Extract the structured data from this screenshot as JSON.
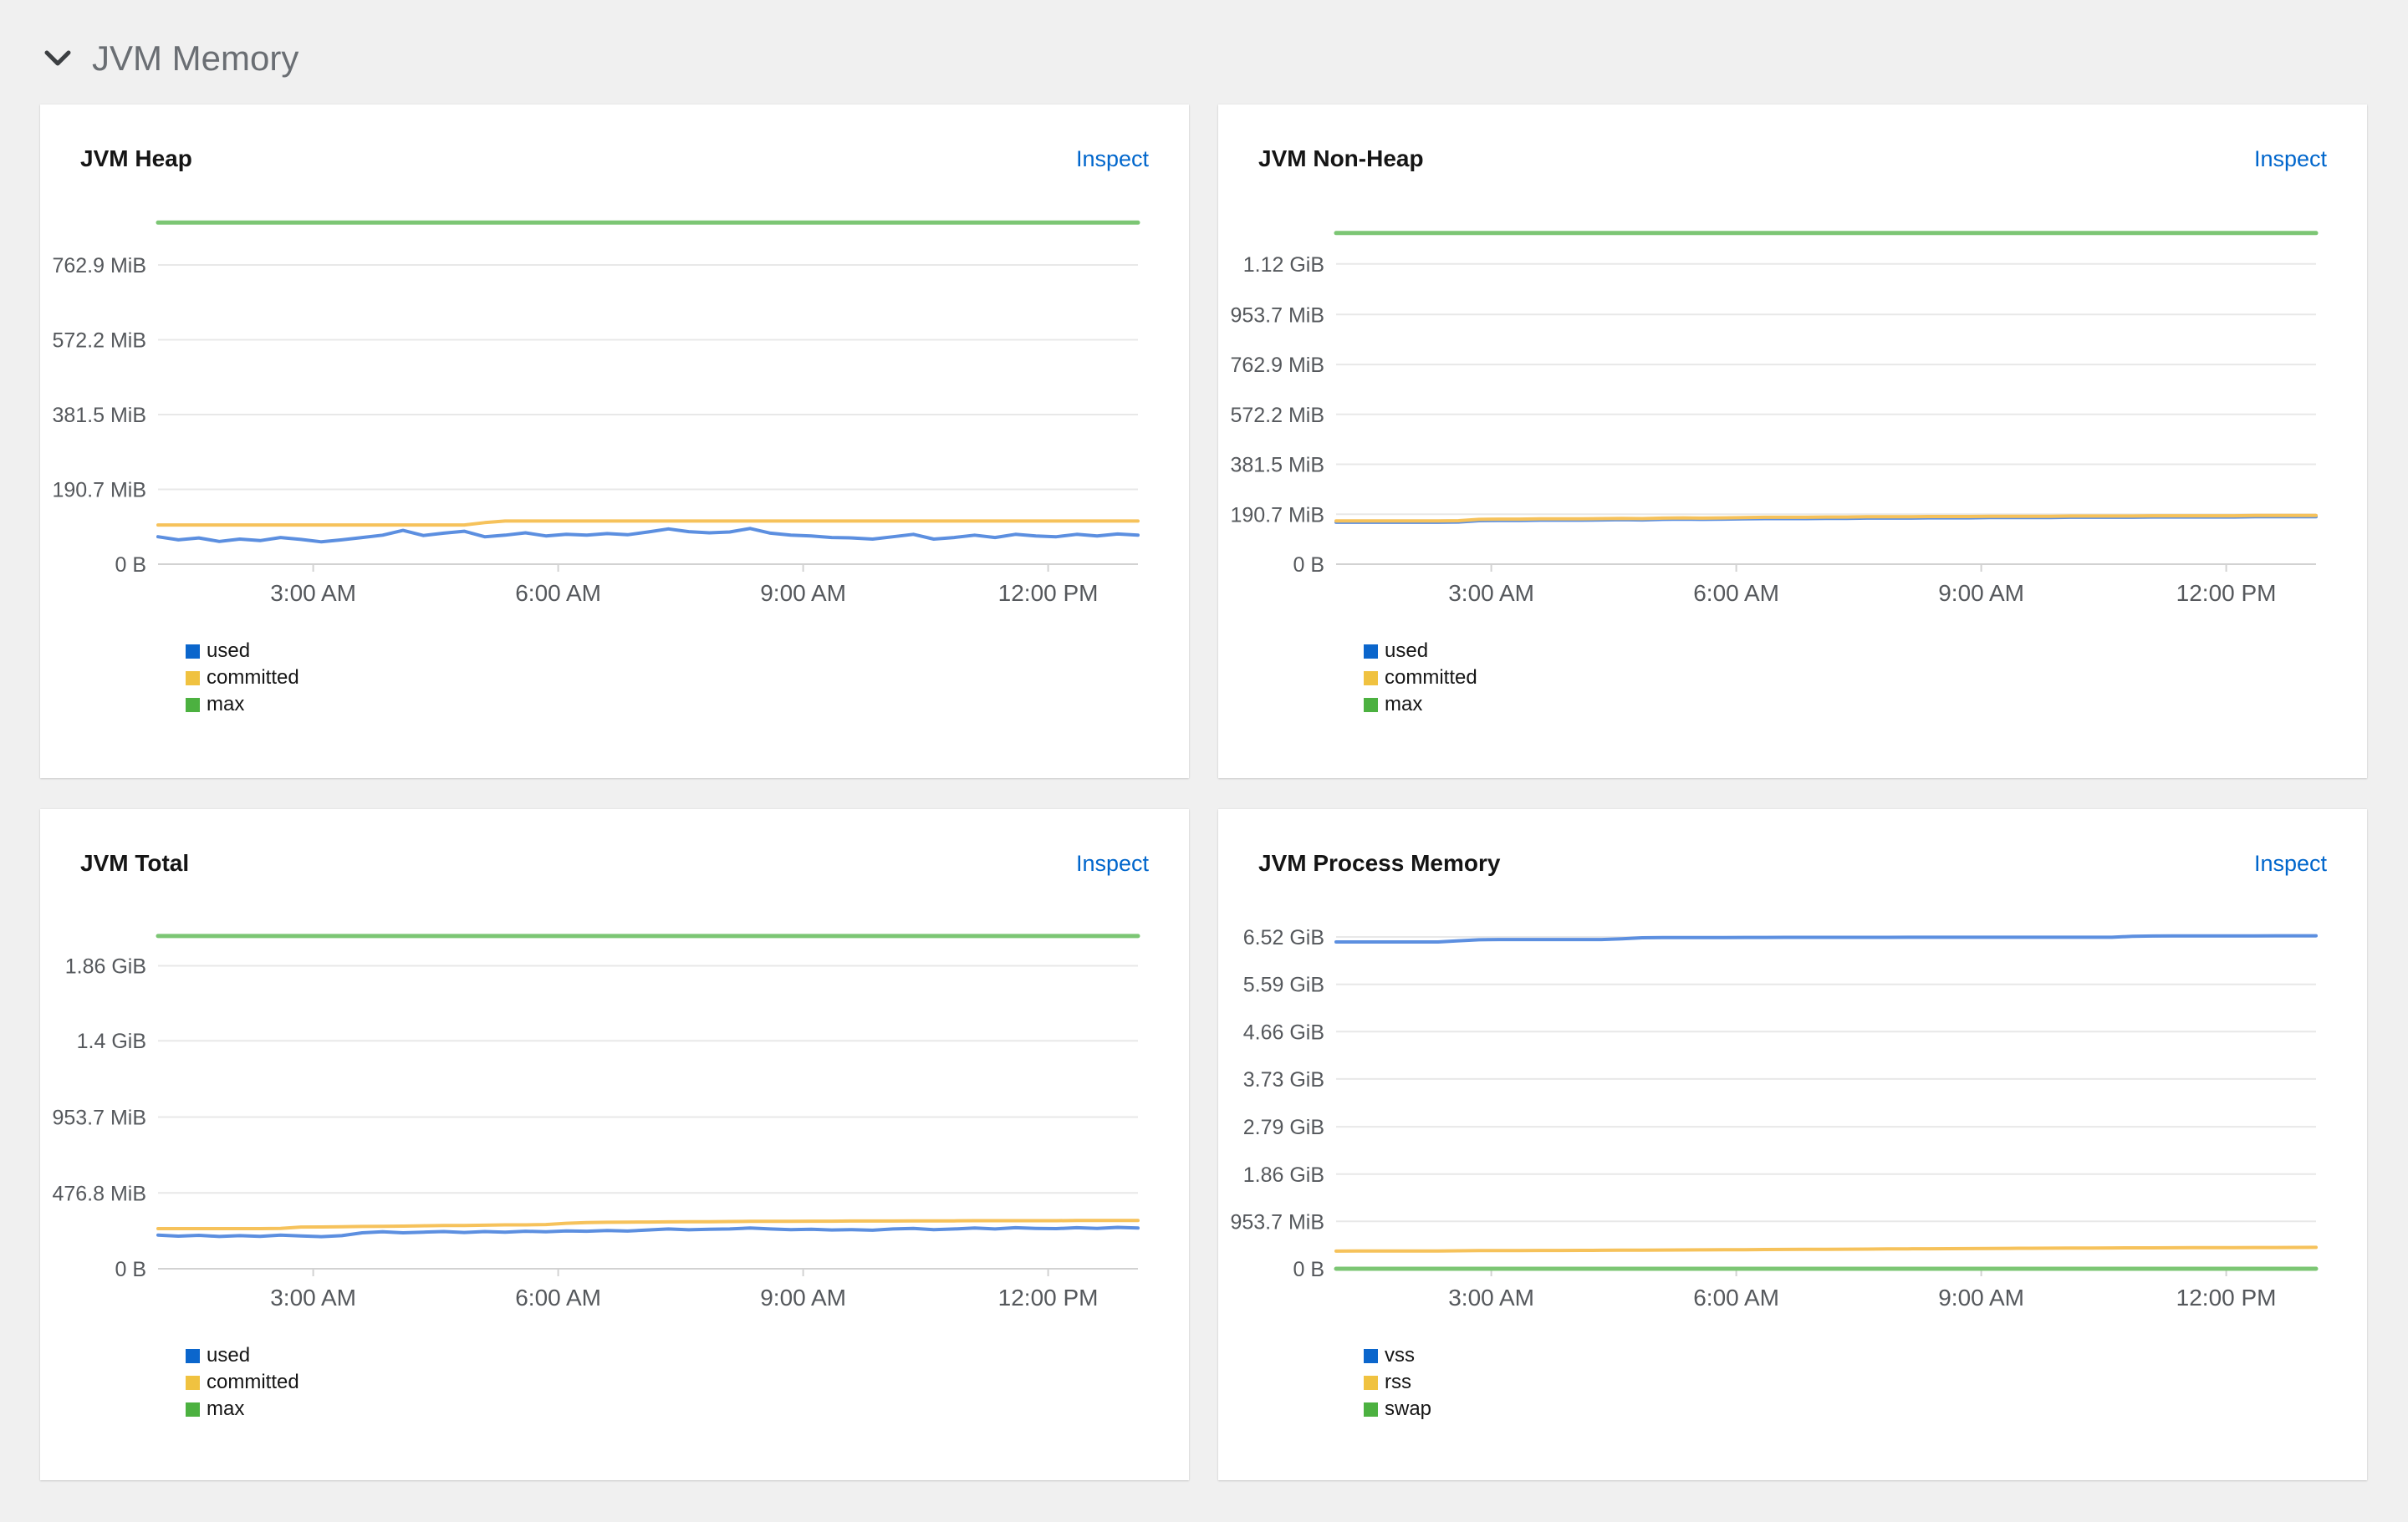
{
  "section": {
    "title": "JVM Memory"
  },
  "panels": [
    {
      "title": "JVM Heap",
      "inspect_label": "Inspect"
    },
    {
      "title": "JVM Non-Heap",
      "inspect_label": "Inspect"
    },
    {
      "title": "JVM Total",
      "inspect_label": "Inspect"
    },
    {
      "title": "JVM Process Memory",
      "inspect_label": "Inspect"
    }
  ],
  "colors": {
    "page_bg": "#f0f0f0",
    "panel_bg": "#ffffff",
    "section_title": "#6a6e73",
    "chevron": "#3c3f42",
    "panel_title": "#151515",
    "link": "#0066cc",
    "axis_text": "#55585c",
    "gridline": "#e8e8e8",
    "axis_line": "#d2d2d2",
    "series": {
      "blue": "#5c8fe0",
      "gold": "#f6c25b",
      "green": "#7cc674"
    },
    "legend": {
      "blue": "#0b66cc",
      "gold": "#f0c240",
      "green": "#4cb140"
    }
  },
  "chart_data": [
    {
      "type": "line",
      "title": "JVM Heap",
      "x_domain": [
        1.1,
        13.1
      ],
      "y_domain_mib": [
        0,
        895
      ],
      "grid": true,
      "legend_position": "bottom-left",
      "x_ticks": [
        {
          "value_hours": 3,
          "label": "3:00 AM"
        },
        {
          "value_hours": 6,
          "label": "6:00 AM"
        },
        {
          "value_hours": 9,
          "label": "9:00 AM"
        },
        {
          "value_hours": 12,
          "label": "12:00 PM"
        }
      ],
      "y_ticks": [
        {
          "value_mib": 0,
          "label": "0 B"
        },
        {
          "value_mib": 190.7,
          "label": "190.7 MiB"
        },
        {
          "value_mib": 381.5,
          "label": "381.5 MiB"
        },
        {
          "value_mib": 572.2,
          "label": "572.2 MiB"
        },
        {
          "value_mib": 762.9,
          "label": "762.9 MiB"
        }
      ],
      "x_hours": [
        1.1,
        1.35,
        1.6,
        1.85,
        2.1,
        2.35,
        2.6,
        2.85,
        3.1,
        3.35,
        3.6,
        3.85,
        4.1,
        4.35,
        4.6,
        4.85,
        5.1,
        5.35,
        5.6,
        5.85,
        6.1,
        6.35,
        6.6,
        6.85,
        7.1,
        7.35,
        7.6,
        7.85,
        8.1,
        8.35,
        8.6,
        8.85,
        9.1,
        9.35,
        9.6,
        9.85,
        10.1,
        10.35,
        10.6,
        10.85,
        11.1,
        11.35,
        11.6,
        11.85,
        12.1,
        12.35,
        12.6,
        12.85,
        13.1
      ],
      "series": [
        {
          "name": "used",
          "color": "blue",
          "values_mib": [
            70,
            62,
            67,
            58,
            64,
            60,
            68,
            63,
            57,
            62,
            68,
            74,
            86,
            73,
            79,
            84,
            70,
            74,
            80,
            72,
            76,
            74,
            78,
            75,
            82,
            90,
            83,
            80,
            82,
            91,
            79,
            74,
            72,
            68,
            67,
            64,
            70,
            76,
            64,
            68,
            74,
            68,
            76,
            72,
            70,
            76,
            72,
            77,
            74
          ]
        },
        {
          "name": "committed",
          "color": "gold",
          "values_mib": [
            100,
            100,
            100,
            100,
            100,
            100,
            100,
            100,
            100,
            100,
            100,
            100,
            100,
            100,
            100,
            100,
            106,
            110,
            110,
            110,
            110,
            110,
            110,
            110,
            110,
            110,
            110,
            110,
            110,
            110,
            110,
            110,
            110,
            110,
            110,
            110,
            110,
            110,
            110,
            110,
            110,
            110,
            110,
            110,
            110,
            110,
            110,
            110,
            110
          ]
        },
        {
          "name": "max",
          "color": "green",
          "x_hours": [
            1.1,
            13.1
          ],
          "values_mib": [
            871,
            871
          ]
        }
      ]
    },
    {
      "type": "line",
      "title": "JVM Non-Heap",
      "x_domain": [
        1.1,
        13.1
      ],
      "y_domain_mib": [
        0,
        1341
      ],
      "grid": true,
      "legend_position": "bottom-left",
      "x_ticks": [
        {
          "value_hours": 3,
          "label": "3:00 AM"
        },
        {
          "value_hours": 6,
          "label": "6:00 AM"
        },
        {
          "value_hours": 9,
          "label": "9:00 AM"
        },
        {
          "value_hours": 12,
          "label": "12:00 PM"
        }
      ],
      "y_ticks": [
        {
          "value_mib": 0,
          "label": "0 B"
        },
        {
          "value_mib": 190.7,
          "label": "190.7 MiB"
        },
        {
          "value_mib": 381.5,
          "label": "381.5 MiB"
        },
        {
          "value_mib": 572.2,
          "label": "572.2 MiB"
        },
        {
          "value_mib": 762.9,
          "label": "762.9 MiB"
        },
        {
          "value_mib": 953.7,
          "label": "953.7 MiB"
        },
        {
          "value_mib": 1146.9,
          "label": "1.12 GiB"
        }
      ],
      "x_hours": [
        1.1,
        1.35,
        1.6,
        1.85,
        2.1,
        2.35,
        2.6,
        2.85,
        3.1,
        3.35,
        3.6,
        3.85,
        4.1,
        4.35,
        4.6,
        4.85,
        5.1,
        5.35,
        5.6,
        5.85,
        6.1,
        6.35,
        6.6,
        6.85,
        7.1,
        7.35,
        7.6,
        7.85,
        8.1,
        8.35,
        8.6,
        8.85,
        9.1,
        9.35,
        9.6,
        9.85,
        10.1,
        10.35,
        10.6,
        10.85,
        11.1,
        11.35,
        11.6,
        11.85,
        12.1,
        12.35,
        12.6,
        12.85,
        13.1
      ],
      "series": [
        {
          "name": "used",
          "color": "blue",
          "values_mib": [
            160,
            160,
            160,
            160,
            160,
            160,
            161,
            166,
            167,
            167,
            168,
            168,
            168,
            169,
            170,
            169,
            171,
            172,
            171,
            172,
            173,
            174,
            174,
            174,
            175,
            175,
            176,
            176,
            176,
            177,
            177,
            177,
            178,
            178,
            178,
            178,
            179,
            179,
            179,
            179,
            180,
            180,
            180,
            180,
            180,
            181,
            181,
            181,
            181
          ]
        },
        {
          "name": "committed",
          "color": "gold",
          "values_mib": [
            165,
            165,
            165,
            165,
            165,
            165,
            166,
            171,
            172,
            172,
            173,
            173,
            173,
            174,
            175,
            174,
            176,
            177,
            176,
            177,
            178,
            179,
            179,
            179,
            180,
            180,
            181,
            181,
            181,
            182,
            182,
            182,
            183,
            183,
            183,
            183,
            184,
            184,
            184,
            184,
            185,
            185,
            185,
            185,
            185,
            186,
            186,
            186,
            186
          ]
        },
        {
          "name": "max",
          "color": "green",
          "x_hours": [
            1.1,
            13.1
          ],
          "values_mib": [
            1265,
            1265
          ]
        }
      ]
    },
    {
      "type": "line",
      "title": "JVM Total",
      "x_domain": [
        1.1,
        13.1
      ],
      "y_domain_mib": [
        0,
        2207
      ],
      "grid": true,
      "legend_position": "bottom-left",
      "x_ticks": [
        {
          "value_hours": 3,
          "label": "3:00 AM"
        },
        {
          "value_hours": 6,
          "label": "6:00 AM"
        },
        {
          "value_hours": 9,
          "label": "9:00 AM"
        },
        {
          "value_hours": 12,
          "label": "12:00 PM"
        }
      ],
      "y_ticks": [
        {
          "value_mib": 0,
          "label": "0 B"
        },
        {
          "value_mib": 476.8,
          "label": "476.8 MiB"
        },
        {
          "value_mib": 953.7,
          "label": "953.7 MiB"
        },
        {
          "value_mib": 1433.6,
          "label": "1.4 GiB"
        },
        {
          "value_mib": 1904.6,
          "label": "1.86 GiB"
        }
      ],
      "x_hours": [
        1.1,
        1.35,
        1.6,
        1.85,
        2.1,
        2.35,
        2.6,
        2.85,
        3.1,
        3.35,
        3.6,
        3.85,
        4.1,
        4.35,
        4.6,
        4.85,
        5.1,
        5.35,
        5.6,
        5.85,
        6.1,
        6.35,
        6.6,
        6.85,
        7.1,
        7.35,
        7.6,
        7.85,
        8.1,
        8.35,
        8.6,
        8.85,
        9.1,
        9.35,
        9.6,
        9.85,
        10.1,
        10.35,
        10.6,
        10.85,
        11.1,
        11.35,
        11.6,
        11.85,
        12.1,
        12.35,
        12.6,
        12.85,
        13.1
      ],
      "series": [
        {
          "name": "used",
          "color": "blue",
          "values_mib": [
            212,
            205,
            210,
            203,
            208,
            204,
            212,
            206,
            202,
            208,
            226,
            232,
            226,
            230,
            234,
            228,
            234,
            230,
            236,
            232,
            238,
            236,
            240,
            237,
            244,
            250,
            245,
            248,
            250,
            256,
            250,
            246,
            248,
            244,
            246,
            242,
            250,
            254,
            246,
            250,
            256,
            250,
            258,
            254,
            252,
            258,
            254,
            260,
            256
          ]
        },
        {
          "name": "committed",
          "color": "gold",
          "values_mib": [
            252,
            252,
            252,
            252,
            252,
            252,
            254,
            262,
            263,
            264,
            266,
            267,
            268,
            270,
            272,
            272,
            274,
            276,
            276,
            278,
            286,
            290,
            292,
            293,
            294,
            295,
            296,
            296,
            297,
            298,
            298,
            298,
            299,
            299,
            300,
            300,
            300,
            301,
            301,
            301,
            302,
            302,
            302,
            302,
            302,
            303,
            303,
            303,
            303
          ]
        },
        {
          "name": "max",
          "color": "green",
          "x_hours": [
            1.1,
            13.1
          ],
          "values_mib": [
            2092,
            2092
          ]
        }
      ]
    },
    {
      "type": "line",
      "title": "JVM Process Memory",
      "x_domain": [
        1.1,
        13.1
      ],
      "y_domain_mib": [
        0,
        7064
      ],
      "grid": true,
      "legend_position": "bottom-left",
      "x_ticks": [
        {
          "value_hours": 3,
          "label": "3:00 AM"
        },
        {
          "value_hours": 6,
          "label": "6:00 AM"
        },
        {
          "value_hours": 9,
          "label": "9:00 AM"
        },
        {
          "value_hours": 12,
          "label": "12:00 PM"
        }
      ],
      "y_ticks": [
        {
          "value_mib": 0,
          "label": "0 B"
        },
        {
          "value_mib": 953.7,
          "label": "953.7 MiB"
        },
        {
          "value_mib": 1904.6,
          "label": "1.86 GiB"
        },
        {
          "value_mib": 2857.0,
          "label": "2.79 GiB"
        },
        {
          "value_mib": 3819.5,
          "label": "3.73 GiB"
        },
        {
          "value_mib": 4771.8,
          "label": "4.66 GiB"
        },
        {
          "value_mib": 5724.2,
          "label": "5.59 GiB"
        },
        {
          "value_mib": 6676.5,
          "label": "6.52 GiB"
        }
      ],
      "x_hours": [
        1.1,
        1.35,
        1.6,
        1.85,
        2.1,
        2.35,
        2.6,
        2.85,
        3.1,
        3.35,
        3.6,
        3.85,
        4.1,
        4.35,
        4.6,
        4.85,
        5.1,
        5.35,
        5.6,
        5.85,
        6.1,
        6.35,
        6.6,
        6.85,
        7.1,
        7.35,
        7.6,
        7.85,
        8.1,
        8.35,
        8.6,
        8.85,
        9.1,
        9.35,
        9.6,
        9.85,
        10.1,
        10.35,
        10.6,
        10.85,
        11.1,
        11.35,
        11.6,
        11.85,
        12.1,
        12.35,
        12.6,
        12.85,
        13.1
      ],
      "series": [
        {
          "name": "vss",
          "color": "blue",
          "values_mib": [
            6576,
            6576,
            6576,
            6576,
            6576,
            6576,
            6600,
            6620,
            6625,
            6625,
            6625,
            6625,
            6625,
            6625,
            6640,
            6660,
            6665,
            6665,
            6666,
            6666,
            6667,
            6667,
            6668,
            6668,
            6668,
            6669,
            6669,
            6669,
            6670,
            6670,
            6670,
            6670,
            6670,
            6670,
            6671,
            6671,
            6671,
            6671,
            6671,
            6690,
            6695,
            6697,
            6698,
            6698,
            6699,
            6699,
            6700,
            6700,
            6700
          ]
        },
        {
          "name": "rss",
          "color": "gold",
          "values_mib": [
            355,
            356,
            356,
            357,
            357,
            358,
            362,
            365,
            366,
            367,
            368,
            369,
            370,
            372,
            374,
            375,
            377,
            378,
            380,
            382,
            384,
            386,
            388,
            390,
            392,
            394,
            396,
            398,
            400,
            402,
            404,
            406,
            408,
            410,
            412,
            413,
            415,
            416,
            418,
            420,
            421,
            422,
            424,
            425,
            426,
            427,
            428,
            429,
            430
          ]
        },
        {
          "name": "swap",
          "color": "green",
          "x_hours": [
            1.1,
            13.1
          ],
          "values_mib": [
            0,
            0
          ]
        }
      ]
    }
  ]
}
